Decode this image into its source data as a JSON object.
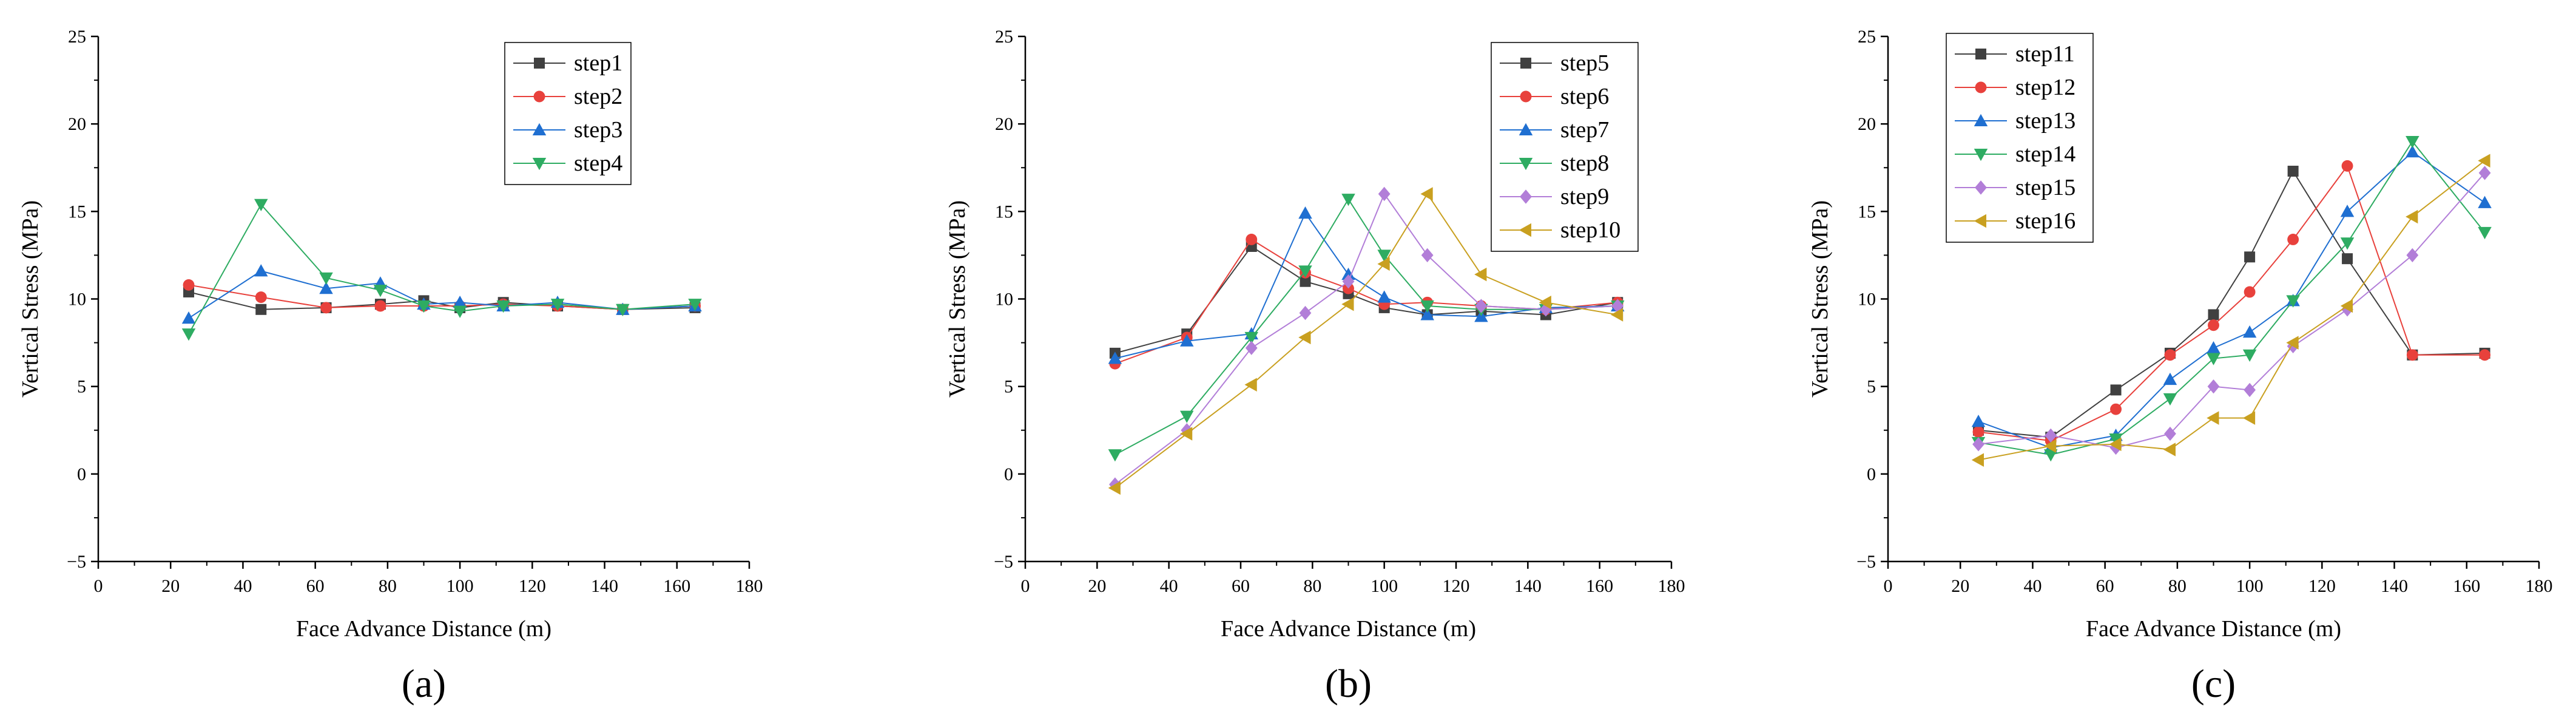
{
  "chart_data": [
    {
      "type": "line",
      "panel_label": "(a)",
      "xlabel": "Face Advance Distance (m)",
      "ylabel": "Vertical Stress (MPa)",
      "xlim": [
        0,
        180
      ],
      "ylim": [
        -5,
        25
      ],
      "xticks": [
        0,
        20,
        40,
        60,
        80,
        100,
        120,
        140,
        160,
        180
      ],
      "yticks": [
        -5,
        0,
        5,
        10,
        15,
        20,
        25
      ],
      "legend_position": "top-right",
      "x": [
        25,
        45,
        63,
        78,
        90,
        100,
        112,
        127,
        145,
        165
      ],
      "series": [
        {
          "name": "step1",
          "color": "#404040",
          "marker": "square",
          "values": [
            10.4,
            9.4,
            9.5,
            9.7,
            9.9,
            9.5,
            9.8,
            9.6,
            9.4,
            9.5
          ]
        },
        {
          "name": "step2",
          "color": "#e8413c",
          "marker": "circle",
          "values": [
            10.8,
            10.1,
            9.5,
            9.6,
            9.6,
            9.6,
            9.7,
            9.6,
            9.4,
            9.6
          ]
        },
        {
          "name": "step3",
          "color": "#1f6fd1",
          "marker": "triangle-up",
          "values": [
            8.9,
            11.6,
            10.6,
            10.9,
            9.7,
            9.8,
            9.6,
            9.8,
            9.4,
            9.6
          ]
        },
        {
          "name": "step4",
          "color": "#2eac62",
          "marker": "triangle-down",
          "values": [
            8.0,
            15.4,
            11.2,
            10.5,
            9.6,
            9.3,
            9.6,
            9.7,
            9.4,
            9.7
          ]
        }
      ]
    },
    {
      "type": "line",
      "panel_label": "(b)",
      "xlabel": "Face Advance Distance (m)",
      "ylabel": "Vertical Stress (MPa)",
      "xlim": [
        0,
        180
      ],
      "ylim": [
        -5,
        25
      ],
      "xticks": [
        0,
        20,
        40,
        60,
        80,
        100,
        120,
        140,
        160,
        180
      ],
      "yticks": [
        -5,
        0,
        5,
        10,
        15,
        20,
        25
      ],
      "legend_position": "top-right",
      "x": [
        25,
        45,
        63,
        78,
        90,
        100,
        112,
        127,
        145,
        165
      ],
      "series": [
        {
          "name": "step5",
          "color": "#404040",
          "marker": "square",
          "values": [
            6.9,
            8.0,
            13.0,
            11.0,
            10.3,
            9.5,
            9.1,
            9.3,
            9.1,
            9.8
          ]
        },
        {
          "name": "step6",
          "color": "#e8413c",
          "marker": "circle",
          "values": [
            6.3,
            7.8,
            13.4,
            11.5,
            10.6,
            9.7,
            9.8,
            9.6,
            9.4,
            9.8
          ]
        },
        {
          "name": "step7",
          "color": "#1f6fd1",
          "marker": "triangle-up",
          "values": [
            6.6,
            7.6,
            8.0,
            14.9,
            11.4,
            10.1,
            9.1,
            9.0,
            9.5,
            9.6
          ]
        },
        {
          "name": "step8",
          "color": "#2eac62",
          "marker": "triangle-down",
          "values": [
            1.1,
            3.3,
            7.8,
            11.6,
            15.7,
            12.5,
            9.6,
            9.4,
            9.4,
            9.6
          ]
        },
        {
          "name": "step9",
          "color": "#b27ed8",
          "marker": "diamond",
          "values": [
            -0.6,
            2.5,
            7.2,
            9.2,
            11.0,
            16.0,
            12.5,
            9.6,
            9.4,
            9.6
          ]
        },
        {
          "name": "step10",
          "color": "#c9a020",
          "marker": "triangle-left",
          "values": [
            -0.8,
            2.3,
            5.1,
            7.8,
            9.7,
            12.0,
            16.0,
            11.4,
            9.8,
            9.1
          ]
        }
      ]
    },
    {
      "type": "line",
      "panel_label": "(c)",
      "xlabel": "Face Advance Distance (m)",
      "ylabel": "Vertical Stress (MPa)",
      "xlim": [
        0,
        180
      ],
      "ylim": [
        -5,
        25
      ],
      "xticks": [
        0,
        20,
        40,
        60,
        80,
        100,
        120,
        140,
        160,
        180
      ],
      "yticks": [
        -5,
        0,
        5,
        10,
        15,
        20,
        25
      ],
      "legend_position": "top-left",
      "x": [
        25,
        45,
        63,
        78,
        90,
        100,
        112,
        127,
        145,
        165
      ],
      "series": [
        {
          "name": "step11",
          "color": "#404040",
          "marker": "square",
          "values": [
            2.5,
            2.1,
            4.8,
            6.9,
            9.1,
            12.4,
            17.3,
            12.3,
            6.8,
            6.9
          ]
        },
        {
          "name": "step12",
          "color": "#e8413c",
          "marker": "circle",
          "values": [
            2.4,
            1.9,
            3.7,
            6.8,
            8.5,
            10.4,
            13.4,
            17.6,
            6.8,
            6.8
          ]
        },
        {
          "name": "step13",
          "color": "#1f6fd1",
          "marker": "triangle-up",
          "values": [
            3.0,
            1.5,
            2.2,
            5.4,
            7.2,
            8.1,
            9.9,
            15.0,
            18.4,
            15.5
          ]
        },
        {
          "name": "step14",
          "color": "#2eac62",
          "marker": "triangle-down",
          "values": [
            1.8,
            1.1,
            2.0,
            4.3,
            6.6,
            6.8,
            9.9,
            13.2,
            19.0,
            13.8
          ]
        },
        {
          "name": "step15",
          "color": "#b27ed8",
          "marker": "diamond",
          "values": [
            1.7,
            2.2,
            1.5,
            2.3,
            5.0,
            4.8,
            7.3,
            9.4,
            12.5,
            17.2
          ]
        },
        {
          "name": "step16",
          "color": "#c9a020",
          "marker": "triangle-left",
          "values": [
            0.8,
            1.6,
            1.7,
            1.4,
            3.2,
            3.2,
            7.5,
            9.6,
            14.7,
            17.9
          ]
        }
      ]
    }
  ]
}
